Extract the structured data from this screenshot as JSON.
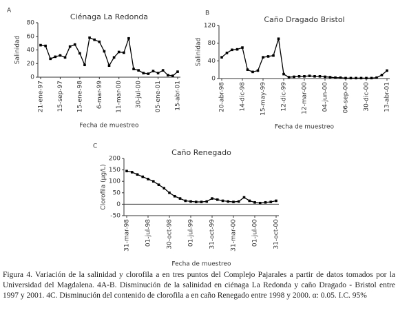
{
  "chart_data": [
    {
      "type": "line",
      "panel": "A",
      "title": "Ciénaga La Redonda",
      "ylabel": "Salinidad",
      "xlabel": "Fecha de muestreo",
      "color": "#000000",
      "categories": [
        "21-ene-97",
        null,
        null,
        null,
        "15-sep-97",
        null,
        null,
        null,
        "15-ene-98",
        null,
        null,
        null,
        "6-mar-99",
        null,
        null,
        null,
        "11-mar-00",
        null,
        null,
        null,
        "30-jul-00",
        null,
        null,
        null,
        "05-ene-01",
        null,
        null,
        null,
        "15-abr-01"
      ],
      "values": [
        47,
        46,
        27,
        30,
        32,
        29,
        45,
        48,
        35,
        18,
        58,
        55,
        52,
        38,
        17,
        29,
        37,
        36,
        57,
        12,
        10,
        6,
        5,
        9,
        6,
        10,
        3,
        2,
        8
      ],
      "ylim": [
        0,
        80
      ],
      "yticks": [
        0,
        20,
        40,
        60,
        80
      ]
    },
    {
      "type": "line",
      "panel": "B",
      "title": "Caño Dragado Bristol",
      "ylabel": "Salinidad",
      "xlabel": "Fecha de muestreo",
      "color": "#000000",
      "categories": [
        "20-abr-98",
        null,
        null,
        null,
        "14-dic-98",
        null,
        null,
        null,
        "15-may-99",
        null,
        null,
        null,
        "12-dic-99",
        null,
        null,
        null,
        "12-mar-00",
        null,
        null,
        null,
        "04-jun-00",
        null,
        null,
        null,
        "06-sep-00",
        null,
        null,
        null,
        "30-dic-00",
        null,
        null,
        null,
        "13-abr-01"
      ],
      "values": [
        48,
        58,
        65,
        66,
        70,
        20,
        15,
        18,
        48,
        50,
        52,
        90,
        10,
        3,
        4,
        5,
        5,
        6,
        5,
        5,
        4,
        3,
        2,
        2,
        1,
        1,
        1,
        1,
        1,
        1,
        2,
        8,
        18
      ],
      "ylim": [
        0,
        120
      ],
      "yticks": [
        0,
        40,
        80,
        120
      ]
    },
    {
      "type": "line",
      "panel": "C",
      "title": "Caño Renegado",
      "ylabel": "Clorofila (µg/L)",
      "xlabel": "Fecha de muestreo",
      "color": "#000000",
      "categories": [
        "31-mar-98",
        null,
        null,
        null,
        "01-jul-98",
        null,
        null,
        null,
        "30-oct-98",
        null,
        null,
        null,
        "01-jul-99",
        null,
        null,
        null,
        "31-oct-99",
        null,
        null,
        null,
        "31-mar-00",
        null,
        null,
        null,
        "01-jul-00",
        null,
        null,
        null,
        "31-oct-00"
      ],
      "values": [
        145,
        140,
        130,
        120,
        110,
        100,
        85,
        70,
        50,
        35,
        25,
        15,
        12,
        10,
        10,
        12,
        25,
        20,
        15,
        12,
        10,
        12,
        30,
        15,
        8,
        5,
        8,
        10,
        15
      ],
      "ylim": [
        -50,
        200
      ],
      "yticks": [
        -50,
        0,
        50,
        100,
        150,
        200
      ]
    }
  ],
  "caption": "Figura 4. Variación de la salinidad y clorofila a en tres puntos del Complejo Pajarales a partir de datos tomados por la Universidad del Magdalena. 4A-B. Disminución de la salinidad en ciénaga La Redonda y caño Dragado - Bristol entre 1997 y 2001. 4C. Disminución del contenido de clorofila a en caño Renegado entre 1998 y 2000. α: 0.05. I.C. 95%"
}
